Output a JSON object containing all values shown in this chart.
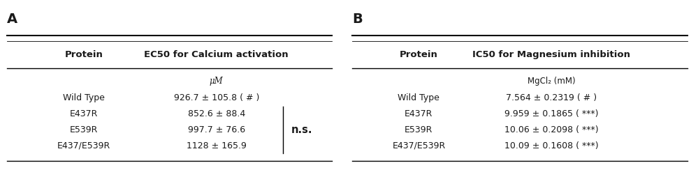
{
  "panel_a_label": "A",
  "panel_b_label": "B",
  "table_a_header_col1": "Protein",
  "table_a_header_col2": "EC50 for Calcium activation",
  "table_a_unit": "μM",
  "table_a_unit_italic": true,
  "table_a_rows": [
    [
      "Wild Type",
      "926.7 ± 105.8 ( # )"
    ],
    [
      "E437R",
      "852.6 ± 88.4"
    ],
    [
      "E539R",
      "997.7 ± 76.6"
    ],
    [
      "E437/E539R",
      "1128 ± 165.9"
    ]
  ],
  "table_a_ns_label": "n.s.",
  "table_b_header_col1": "Protein",
  "table_b_header_col2": "IC50 for Magnesium inhibition",
  "table_b_unit": "MgCl₂ (mM)",
  "table_b_unit_italic": false,
  "table_b_rows": [
    [
      "Wild Type",
      "7.564 ± 0.2319 ( # )"
    ],
    [
      "E437R",
      "9.959 ± 0.1865 ( ***)"
    ],
    [
      "E539R",
      "10.06 ± 0.2098 ( ***)"
    ],
    [
      "E437/E539R",
      "10.09 ± 0.1608 ( ***)"
    ]
  ],
  "text_color": "#1a1a1a",
  "header_fontsize": 9.5,
  "data_fontsize": 9,
  "unit_fontsize": 8.5,
  "panel_label_fontsize": 14,
  "line_color": "black",
  "line_lw_thick": 1.5,
  "line_lw_thin": 1.0
}
